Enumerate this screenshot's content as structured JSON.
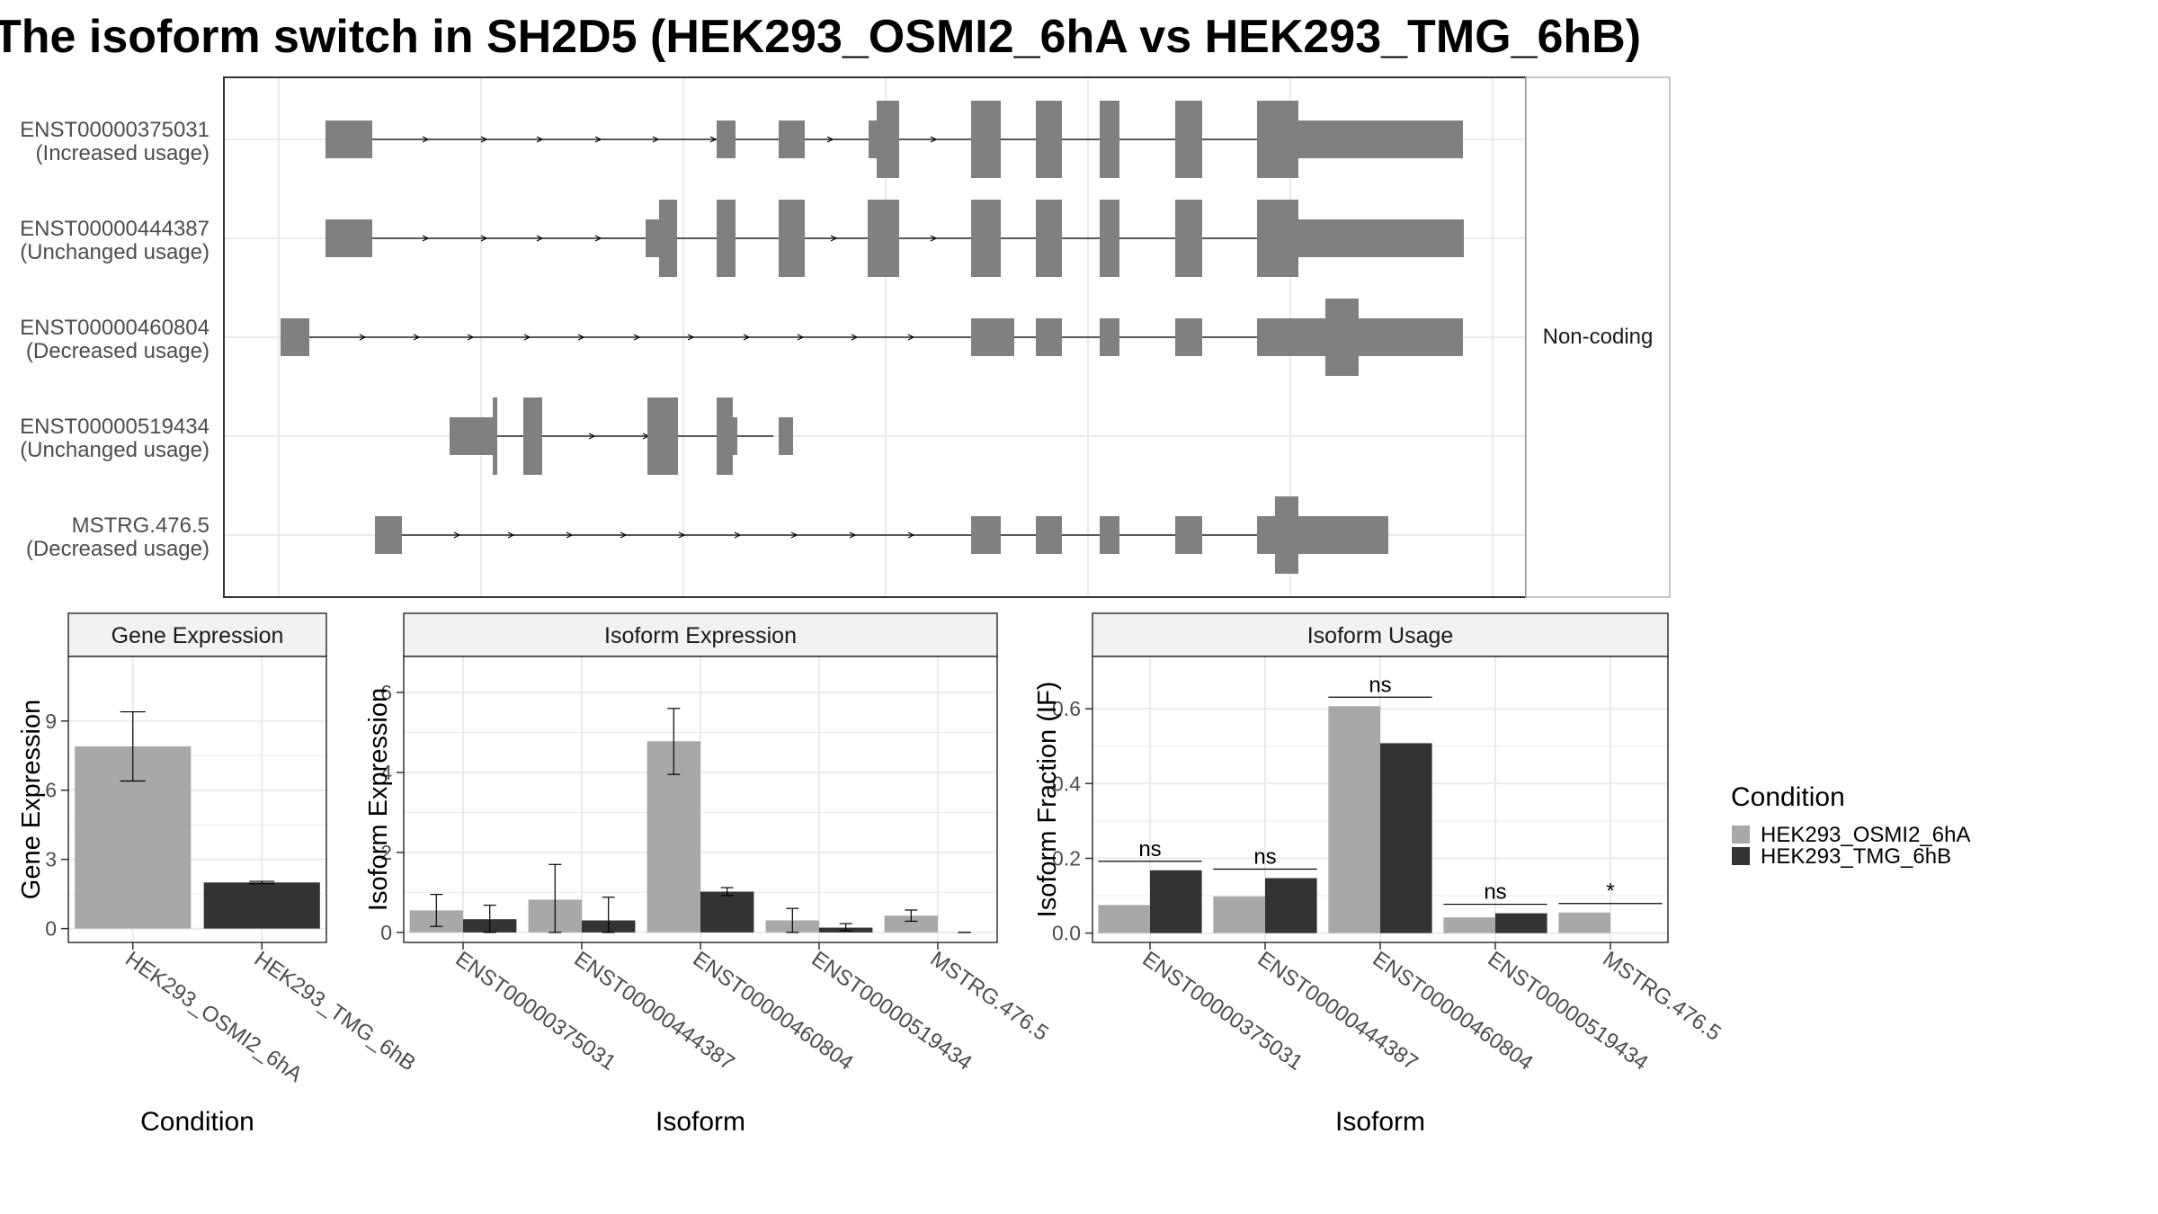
{
  "title": "The isoform switch in SH2D5 (HEK293_OSMI2_6hA vs HEK293_TMG_6hB)",
  "colors": {
    "cond1": "#a8a8a8",
    "cond2": "#333333",
    "exon": "#808080",
    "panel_border": "#333333",
    "strip_fill": "#f2f2f2",
    "grid": "#ebebeb",
    "axis_text": "#4d4d4d"
  },
  "legend": {
    "title": "Condition",
    "entries": [
      "HEK293_OSMI2_6hA",
      "HEK293_TMG_6hB"
    ]
  },
  "transcripts": {
    "side_label": "Non-coding",
    "items": [
      {
        "id": "ENST00000375031",
        "status": "(Increased usage)"
      },
      {
        "id": "ENST00000444387",
        "status": "(Unchanged usage)"
      },
      {
        "id": "ENST00000460804",
        "status": "(Decreased usage)"
      },
      {
        "id": "ENST00000519434",
        "status": "(Unchanged usage)"
      },
      {
        "id": "MSTRG.476.5",
        "status": "(Decreased usage)"
      }
    ]
  },
  "chart_data": [
    {
      "type": "bar",
      "panel": "Gene Expression",
      "xlabel": "Condition",
      "ylabel": "Gene Expression",
      "categories": [
        "HEK293_OSMI2_6hA",
        "HEK293_TMG_6hB"
      ],
      "values": [
        7.9,
        2.0
      ],
      "error_low": [
        6.4,
        1.95
      ],
      "error_high": [
        9.4,
        2.05
      ],
      "yticks": [
        0,
        3,
        6,
        9
      ],
      "ylim": [
        -0.6,
        11.8
      ]
    },
    {
      "type": "bar",
      "panel": "Isoform Expression",
      "xlabel": "Isoform",
      "ylabel": "Isoform Expression",
      "categories": [
        "ENST00000375031",
        "ENST00000444387",
        "ENST00000460804",
        "ENST00000519434",
        "MSTRG.476.5"
      ],
      "series": [
        {
          "name": "HEK293_OSMI2_6hA",
          "values": [
            0.55,
            0.82,
            4.78,
            0.3,
            0.42
          ],
          "error_low": [
            0.15,
            0.0,
            3.95,
            0.0,
            0.28
          ],
          "error_high": [
            0.95,
            1.7,
            5.6,
            0.6,
            0.56
          ]
        },
        {
          "name": "HEK293_TMG_6hB",
          "values": [
            0.33,
            0.3,
            1.02,
            0.12,
            0.0
          ],
          "error_low": [
            0.0,
            0.0,
            0.92,
            0.04,
            0.0
          ],
          "error_high": [
            0.68,
            0.88,
            1.12,
            0.22,
            0.0
          ]
        }
      ],
      "yticks": [
        0,
        2,
        4,
        6
      ],
      "ylim": [
        -0.25,
        6.9
      ]
    },
    {
      "type": "bar",
      "panel": "Isoform Usage",
      "xlabel": "Isoform",
      "ylabel": "Isoform Fraction (IF)",
      "categories": [
        "ENST00000375031",
        "ENST00000444387",
        "ENST00000460804",
        "ENST00000519434",
        "MSTRG.476.5"
      ],
      "series": [
        {
          "name": "HEK293_OSMI2_6hA",
          "values": [
            0.075,
            0.098,
            0.607,
            0.042,
            0.055
          ]
        },
        {
          "name": "HEK293_TMG_6hB",
          "values": [
            0.168,
            0.147,
            0.508,
            0.053,
            0.0
          ]
        }
      ],
      "significance": [
        "ns",
        "ns",
        "ns",
        "ns",
        "*"
      ],
      "yticks": [
        0.0,
        0.2,
        0.4,
        0.6
      ],
      "ylim": [
        -0.025,
        0.74
      ]
    }
  ]
}
